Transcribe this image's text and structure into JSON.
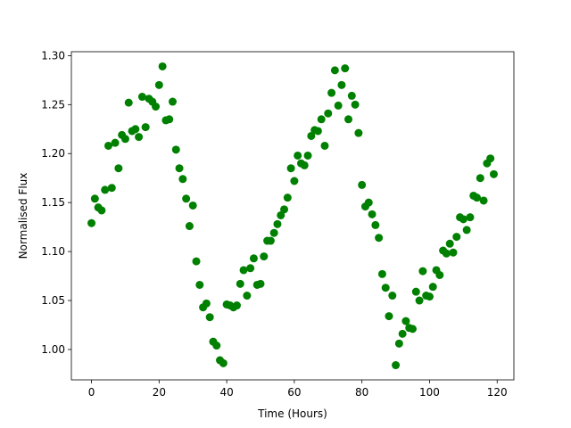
{
  "chart_data": {
    "type": "scatter",
    "xlabel": "Time (Hours)",
    "ylabel": "Normalised Flux",
    "color": "#008000",
    "x": [
      0,
      1,
      2,
      3,
      4,
      5,
      6,
      7,
      8,
      9,
      10,
      11,
      12,
      13,
      14,
      15,
      16,
      17,
      18,
      19,
      20,
      21,
      22,
      23,
      24,
      25,
      26,
      27,
      28,
      29,
      30,
      31,
      32,
      33,
      34,
      35,
      36,
      37,
      38,
      39,
      40,
      41,
      42,
      43,
      44,
      45,
      46,
      47,
      48,
      49,
      50,
      51,
      52,
      53,
      54,
      55,
      56,
      57,
      58,
      59,
      60,
      61,
      62,
      63,
      64,
      65,
      66,
      67,
      68,
      69,
      70,
      71,
      72,
      73,
      74,
      75,
      76,
      77,
      78,
      79,
      80,
      81,
      82,
      83,
      84,
      85,
      86,
      87,
      88,
      89,
      90,
      91,
      92,
      93,
      94,
      95,
      96,
      97,
      98,
      99,
      100,
      101,
      102,
      103,
      104,
      105,
      106,
      107,
      108,
      109,
      110,
      111,
      112,
      113,
      114,
      115,
      116,
      117,
      118,
      119
    ],
    "values": [
      1.129,
      1.154,
      1.145,
      1.142,
      1.163,
      1.208,
      1.165,
      1.211,
      1.185,
      1.219,
      1.215,
      1.252,
      1.223,
      1.225,
      1.217,
      1.258,
      1.227,
      1.256,
      1.253,
      1.248,
      1.27,
      1.289,
      1.234,
      1.235,
      1.253,
      1.204,
      1.185,
      1.174,
      1.154,
      1.126,
      1.147,
      1.09,
      1.066,
      1.043,
      1.047,
      1.033,
      1.008,
      1.004,
      0.989,
      0.986,
      1.046,
      1.045,
      1.043,
      1.045,
      1.067,
      1.081,
      1.055,
      1.083,
      1.093,
      1.066,
      1.067,
      1.095,
      1.111,
      1.111,
      1.119,
      1.128,
      1.137,
      1.143,
      1.155,
      1.185,
      1.172,
      1.198,
      1.19,
      1.188,
      1.198,
      1.218,
      1.224,
      1.223,
      1.235,
      1.208,
      1.241,
      1.262,
      1.285,
      1.249,
      1.27,
      1.287,
      1.235,
      1.259,
      1.25,
      1.221,
      1.168,
      1.146,
      1.15,
      1.138,
      1.127,
      1.114,
      1.077,
      1.063,
      1.034,
      1.055,
      0.984,
      1.006,
      1.016,
      1.029,
      1.022,
      1.021,
      1.059,
      1.05,
      1.08,
      1.055,
      1.054,
      1.064,
      1.081,
      1.076,
      1.101,
      1.098,
      1.108,
      1.099,
      1.115,
      1.135,
      1.133,
      1.122,
      1.135,
      1.157,
      1.155,
      1.175,
      1.152,
      1.19,
      1.195,
      1.179
    ],
    "xlim": [
      -5.95,
      124.95
    ],
    "xticks": [
      0,
      20,
      40,
      60,
      80,
      100,
      120
    ],
    "ylim": [
      0.969,
      1.304
    ],
    "yticks": [
      {
        "value": 1,
        "label": "1.00"
      },
      1.05,
      {
        "value": 1.1,
        "label": "1.10"
      },
      1.15,
      {
        "value": 1.2,
        "label": "1.20"
      },
      1.25,
      {
        "value": 1.3,
        "label": "1.30"
      }
    ]
  }
}
